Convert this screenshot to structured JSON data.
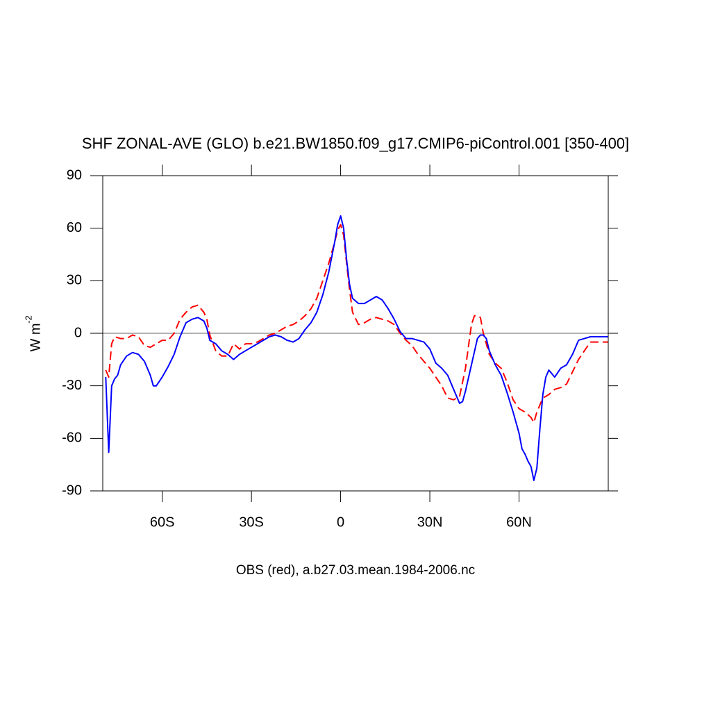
{
  "chart_data": {
    "type": "line",
    "title": "SHF ZONAL-AVE (GLO) b.e21.BW1850.f09_g17.CMIP6-piControl.001 [350-400]",
    "x_label": "OBS (red), a.b27.03.mean.1984-2006.nc",
    "y_label": "W m",
    "y_label_superscript": "-2",
    "xlim": [
      -80,
      90
    ],
    "ylim": [
      -90,
      90
    ],
    "xticks": [
      {
        "value": -60,
        "label": "60S"
      },
      {
        "value": -30,
        "label": "30S"
      },
      0,
      {
        "value": 30,
        "label": "30N"
      },
      {
        "value": 60,
        "label": "60N"
      }
    ],
    "yticks": [
      -90,
      -60,
      -30,
      0,
      30,
      60,
      90
    ],
    "reference_line": 0,
    "series": [
      {
        "color": "#ff0000",
        "dashed": true,
        "x": [
          -79,
          -78,
          -77,
          -76,
          -74,
          -72,
          -70,
          -68,
          -66,
          -64,
          -62,
          -60,
          -58,
          -56,
          -54,
          -52,
          -50,
          -48,
          -46,
          -45,
          -44,
          -42,
          -40,
          -38,
          -36,
          -34,
          -32,
          -30,
          -28,
          -26,
          -24,
          -22,
          -20,
          -18,
          -16,
          -14,
          -12,
          -10,
          -8,
          -6,
          -4,
          -2,
          -1,
          0,
          1,
          2,
          3,
          4,
          6,
          8,
          10,
          12,
          14,
          16,
          18,
          20,
          22,
          24,
          26,
          28,
          30,
          32,
          34,
          36,
          38,
          40,
          42,
          44,
          45,
          46,
          47,
          48,
          50,
          52,
          54,
          56,
          58,
          60,
          62,
          64,
          65,
          66,
          68,
          70,
          72,
          74,
          76,
          78,
          80,
          82,
          84,
          86,
          88,
          90
        ],
        "values": [
          -21,
          -25,
          -6,
          -2,
          -3,
          -3,
          -1,
          -2,
          -7,
          -8,
          -6,
          -4,
          -4,
          0,
          8,
          12,
          15,
          16,
          12,
          8,
          -1,
          -10,
          -13,
          -13,
          -6,
          -9,
          -6,
          -6,
          -5,
          -3,
          -1,
          0,
          2,
          4,
          5,
          7,
          10,
          14,
          20,
          30,
          40,
          52,
          59,
          62,
          56,
          40,
          25,
          12,
          5,
          6,
          8,
          9,
          8,
          7,
          5,
          0,
          -4,
          -7,
          -12,
          -16,
          -20,
          -25,
          -30,
          -37,
          -38,
          -36,
          -20,
          5,
          10,
          10,
          9,
          0,
          -12,
          -17,
          -20,
          -28,
          -38,
          -43,
          -45,
          -48,
          -51,
          -45,
          -37,
          -35,
          -32,
          -31,
          -29,
          -22,
          -15,
          -10,
          -5,
          -5,
          -5,
          -5
        ]
      },
      {
        "color": "#0000ff",
        "dashed": false,
        "x": [
          -79,
          -78,
          -77,
          -76,
          -75,
          -74,
          -72,
          -70,
          -68,
          -66,
          -64,
          -63,
          -62,
          -60,
          -58,
          -56,
          -54,
          -52,
          -50,
          -48,
          -46,
          -45,
          -44,
          -42,
          -40,
          -38,
          -36,
          -34,
          -32,
          -30,
          -28,
          -26,
          -24,
          -22,
          -20,
          -18,
          -16,
          -14,
          -12,
          -10,
          -8,
          -6,
          -4,
          -2,
          -1,
          0,
          1,
          2,
          3,
          4,
          6,
          8,
          10,
          12,
          14,
          16,
          18,
          20,
          22,
          24,
          26,
          28,
          30,
          32,
          34,
          36,
          38,
          40,
          41,
          42,
          44,
          46,
          47,
          48,
          49,
          50,
          52,
          54,
          56,
          58,
          60,
          61,
          62,
          63,
          64,
          65,
          66,
          67,
          68,
          69,
          70,
          71,
          72,
          74,
          76,
          78,
          80,
          82,
          84,
          86,
          90
        ],
        "values": [
          -25,
          -68,
          -30,
          -26,
          -24,
          -18,
          -13,
          -11,
          -12,
          -16,
          -24,
          -30,
          -30,
          -25,
          -19,
          -12,
          -2,
          6,
          8,
          9,
          7,
          3,
          -4,
          -6,
          -10,
          -12,
          -15,
          -12,
          -10,
          -8,
          -6,
          -4,
          -2,
          -1,
          -2,
          -4,
          -5,
          -3,
          2,
          6,
          12,
          22,
          35,
          52,
          62,
          67,
          60,
          42,
          28,
          20,
          17,
          17,
          19,
          21,
          19,
          14,
          8,
          1,
          -3,
          -3,
          -4,
          -5,
          -9,
          -17,
          -20,
          -24,
          -32,
          -40,
          -39,
          -33,
          -18,
          -3,
          -1,
          -1,
          -3,
          -10,
          -18,
          -24,
          -34,
          -45,
          -57,
          -66,
          -69,
          -73,
          -76,
          -84,
          -77,
          -55,
          -35,
          -25,
          -21,
          -23,
          -25,
          -20,
          -18,
          -12,
          -4,
          -3,
          -2,
          -2,
          -2
        ]
      }
    ]
  }
}
